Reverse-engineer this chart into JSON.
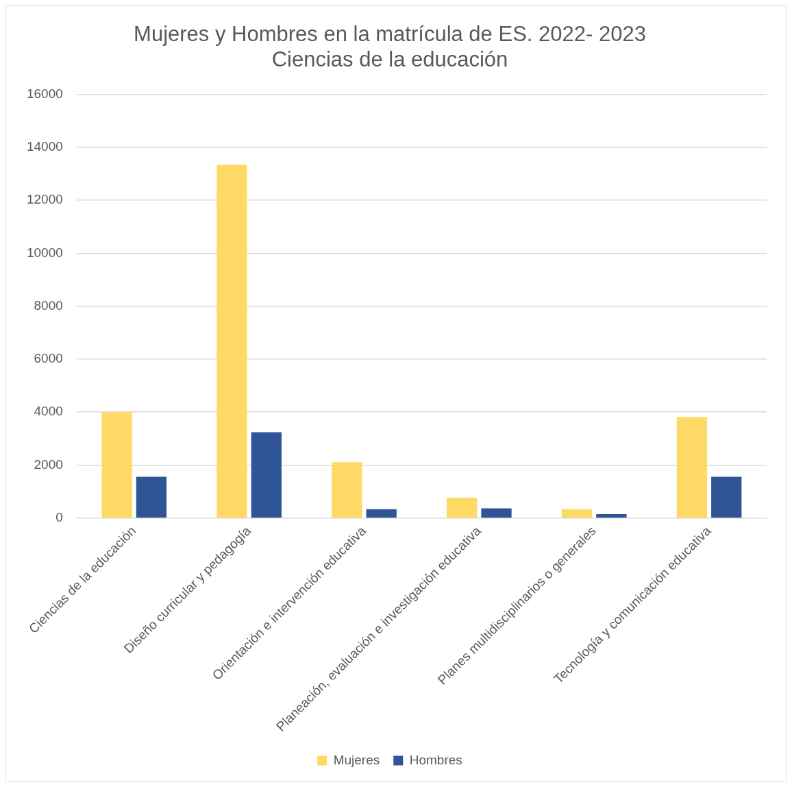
{
  "chart_data": {
    "type": "bar",
    "title": "Mujeres y Hombres en la matrícula de ES. 2022- 2023\nCiencias de la educación",
    "categories": [
      "Ciencias de la educación",
      "Diseño curricular y pedagogía",
      "Orientación e intervención educativa",
      "Planeación, evaluación e investigación educativa",
      "Planes multidisciplinarios o generales",
      "Tecnología y comunicación educativa"
    ],
    "series": [
      {
        "name": "Mujeres",
        "color": "#ffd966",
        "values": [
          4000,
          13340,
          2110,
          770,
          340,
          3820
        ]
      },
      {
        "name": "Hombres",
        "color": "#2f5597",
        "values": [
          1560,
          3240,
          340,
          370,
          150,
          1560
        ]
      }
    ],
    "ylim": [
      0,
      16000
    ],
    "yticks": [
      0,
      2000,
      4000,
      6000,
      8000,
      10000,
      12000,
      14000,
      16000
    ],
    "grid": "y",
    "legend": "bottom"
  }
}
